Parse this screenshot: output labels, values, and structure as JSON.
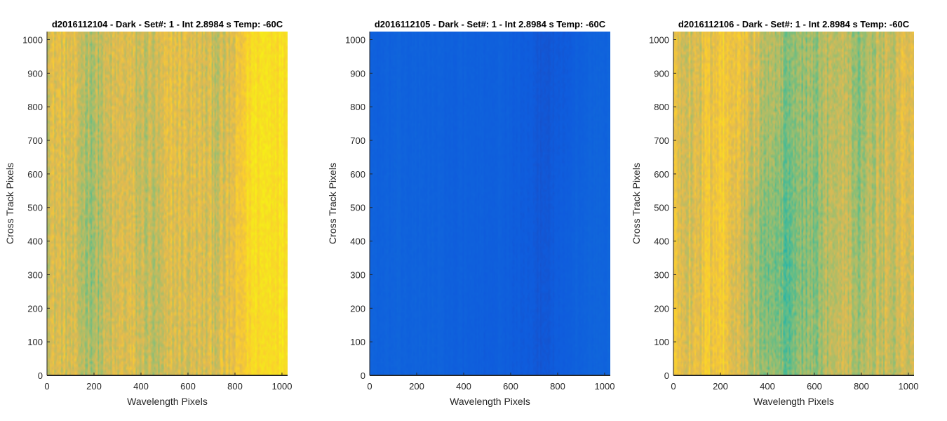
{
  "chart_data": [
    {
      "type": "heatmap",
      "title": "d2016112104 - Dark - Set#: 1 - Int 2.8984 s Temp: -60C",
      "xlabel": "Wavelength Pixels",
      "ylabel": "Cross Track Pixels",
      "xlim": [
        0,
        1024
      ],
      "ylim": [
        0,
        1024
      ],
      "xticks": [
        "0",
        "200",
        "400",
        "600",
        "800",
        "1000"
      ],
      "yticks": [
        "0",
        "100",
        "200",
        "300",
        "400",
        "500",
        "600",
        "700",
        "800",
        "900",
        "1000"
      ],
      "colormap": "parula",
      "base_level": 0.7,
      "noise_level": 0.17,
      "column_trend": [
        0.74,
        0.74,
        0.72,
        0.7,
        0.68,
        0.66,
        0.66,
        0.68,
        0.7,
        0.72,
        0.82,
        0.86
      ]
    },
    {
      "type": "heatmap",
      "title": "d2016112105 - Dark - Set#: 1 - Int 2.8984 s Temp: -60C",
      "xlabel": "Wavelength Pixels",
      "ylabel": "Cross Track Pixels",
      "xlim": [
        0,
        1024
      ],
      "ylim": [
        0,
        1024
      ],
      "xticks": [
        "0",
        "200",
        "400",
        "600",
        "800",
        "1000"
      ],
      "yticks": [
        "0",
        "100",
        "200",
        "300",
        "400",
        "500",
        "600",
        "700",
        "800",
        "900",
        "1000"
      ],
      "colormap": "parula",
      "base_level": 0.11,
      "noise_level": 0.02,
      "column_trend": [
        0.12,
        0.12,
        0.12,
        0.12,
        0.12,
        0.11,
        0.11,
        0.1,
        0.09,
        0.1,
        0.11,
        0.12
      ]
    },
    {
      "type": "heatmap",
      "title": "d2016112106 - Dark - Set#: 1 - Int 2.8984 s Temp: -60C",
      "xlabel": "Wavelength Pixels",
      "ylabel": "Cross Track Pixels",
      "xlim": [
        0,
        1024
      ],
      "ylim": [
        0,
        1024
      ],
      "xticks": [
        "0",
        "200",
        "400",
        "600",
        "800",
        "1000"
      ],
      "yticks": [
        "0",
        "100",
        "200",
        "300",
        "400",
        "500",
        "600",
        "700",
        "800",
        "900",
        "1000"
      ],
      "colormap": "parula",
      "base_level": 0.66,
      "noise_level": 0.17,
      "column_trend": [
        0.72,
        0.72,
        0.72,
        0.7,
        0.66,
        0.6,
        0.6,
        0.64,
        0.66,
        0.64,
        0.62,
        0.64
      ]
    }
  ]
}
